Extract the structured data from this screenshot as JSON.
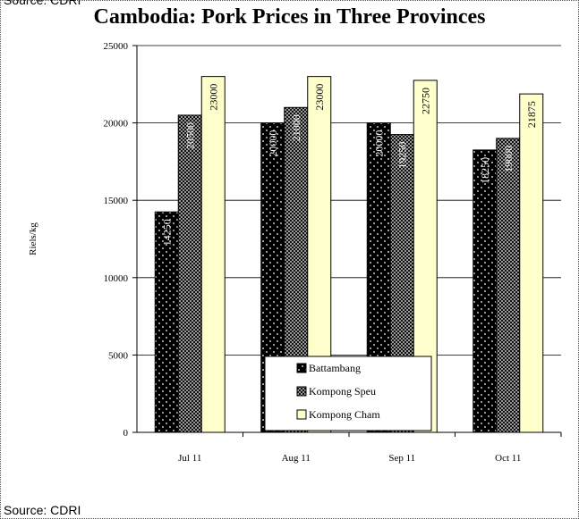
{
  "source_top": "Source: CDRI",
  "source_bottom": "Source: CDRI",
  "chart_data": {
    "type": "bar",
    "title": "Cambodia: Pork Prices in Three Provinces",
    "xlabel": "",
    "ylabel": "Riels/kg",
    "ylim": [
      0,
      25000
    ],
    "yticks": [
      0,
      5000,
      10000,
      15000,
      20000,
      25000
    ],
    "categories": [
      "Jul 11",
      "Aug 11",
      "Sep 11",
      "Oct 11"
    ],
    "series": [
      {
        "name": "Battambang",
        "values": [
          14250,
          20000,
          20000,
          18250
        ],
        "color": "#000000",
        "pattern": "dots-white-on-black"
      },
      {
        "name": "Kompong Speu",
        "values": [
          20500,
          21000,
          19250,
          19000
        ],
        "color": "#333333",
        "pattern": "checker"
      },
      {
        "name": "Kompong Cham",
        "values": [
          23000,
          23000,
          22750,
          21875
        ],
        "color": "#ffffcc",
        "pattern": "solid"
      }
    ],
    "grid": true,
    "legend_position": "bottom-center",
    "data_labels": true,
    "data_label_orientation": "vertical"
  }
}
